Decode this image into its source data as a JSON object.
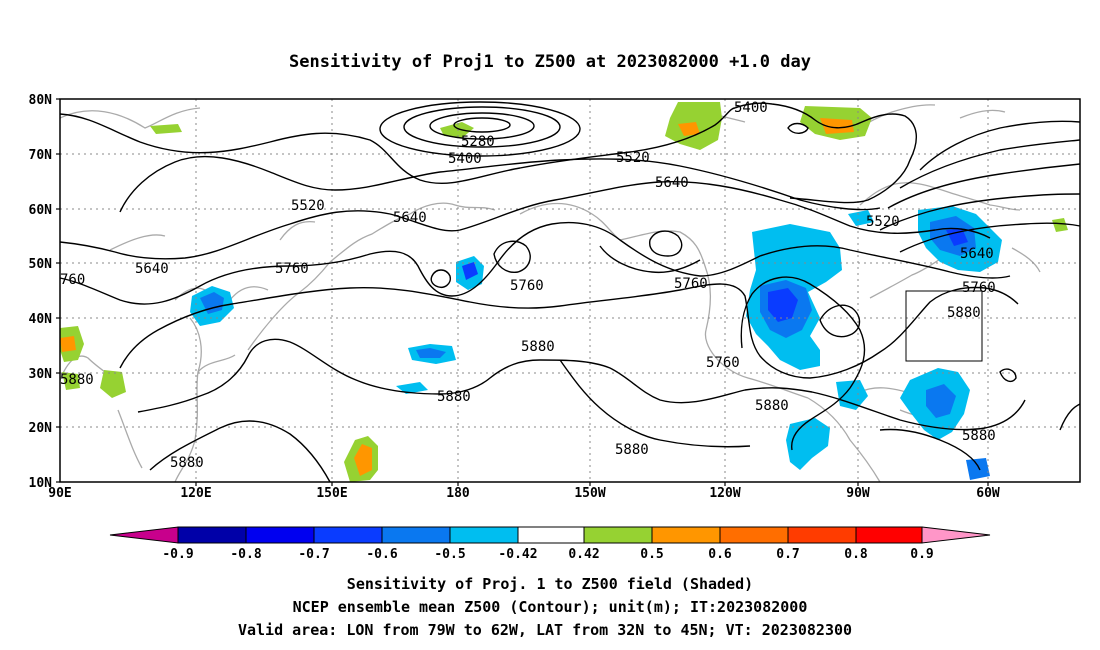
{
  "title": "Sensitivity of Proj1 to Z500 at 2023082000 +1.0 day",
  "lat_labels": [
    "80N",
    "70N",
    "60N",
    "50N",
    "40N",
    "30N",
    "20N",
    "10N"
  ],
  "lon_labels": [
    "90E",
    "120E",
    "150E",
    "180",
    "150W",
    "120W",
    "90W",
    "60W"
  ],
  "contour_labels": [
    {
      "text": "5400",
      "near": "east"
    },
    {
      "text": "5280",
      "near": "pole"
    },
    {
      "text": "5400",
      "near": "pole"
    },
    {
      "text": "5520",
      "near": "central"
    },
    {
      "text": "5520",
      "near": "west"
    },
    {
      "text": "5640",
      "near": "central"
    },
    {
      "text": "5640",
      "near": "west"
    },
    {
      "text": "5640",
      "near": "mid"
    },
    {
      "text": "5520",
      "near": "east"
    },
    {
      "text": "5640",
      "near": "east"
    },
    {
      "text": "760",
      "near": "west-edge"
    },
    {
      "text": "5760",
      "near": "west"
    },
    {
      "text": "5760",
      "near": "mid"
    },
    {
      "text": "5760",
      "near": "central"
    },
    {
      "text": "5760",
      "near": "east"
    },
    {
      "text": "5760",
      "near": "east-2"
    },
    {
      "text": "5880",
      "near": "east"
    },
    {
      "text": "5880",
      "near": "west"
    },
    {
      "text": "5880",
      "near": "central"
    },
    {
      "text": "5880",
      "near": "mid"
    },
    {
      "text": "5880",
      "near": "central-2"
    },
    {
      "text": "5880",
      "near": "east-2"
    },
    {
      "text": "5880",
      "near": "east-3"
    },
    {
      "text": "5880",
      "near": "south-west"
    }
  ],
  "colorbar": {
    "colors": [
      "#c8008c",
      "#0000a8",
      "#0000f0",
      "#0a3cff",
      "#0a78f0",
      "#00bef0",
      "#ffffff",
      "#96d232",
      "#ff9600",
      "#ff6e00",
      "#ff3c00",
      "#ff0000",
      "#ff96c8"
    ],
    "labels": [
      "-0.9",
      "-0.8",
      "-0.7",
      "-0.6",
      "-0.5",
      "-0.42",
      "0.42",
      "0.5",
      "0.6",
      "0.7",
      "0.8",
      "0.9"
    ]
  },
  "caption": {
    "line1": "Sensitivity of Proj. 1 to Z500 field (Shaded)",
    "line2": "NCEP ensemble mean Z500 (Contour); unit(m); IT:2023082000",
    "line3": "Valid area: LON from 79W to 62W, LAT from 32N to 45N; VT: 2023082300"
  }
}
